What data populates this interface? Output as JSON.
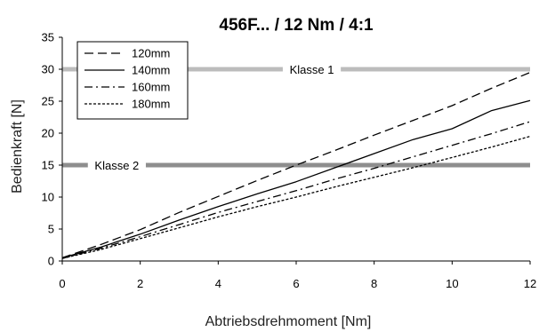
{
  "chart_data": {
    "type": "line",
    "title": "456F... / 12 Nm / 4:1",
    "xlabel": "Abtriebsdrehmoment [Nm]",
    "ylabel": "Bedienkraft [N]",
    "xlim": [
      0,
      12
    ],
    "ylim": [
      0,
      35
    ],
    "xticks": [
      0,
      2,
      4,
      6,
      8,
      10,
      12
    ],
    "yticks": [
      0,
      5,
      10,
      15,
      20,
      25,
      30,
      35
    ],
    "grid": false,
    "legend_position": "top-left",
    "x": [
      0,
      1,
      2,
      3,
      4,
      5,
      6,
      7,
      8,
      9,
      10,
      11,
      12
    ],
    "series": [
      {
        "name": "120mm",
        "dash": "dashed",
        "color": "#000000",
        "values": [
          0.5,
          2.6,
          4.9,
          7.6,
          10.1,
          12.6,
          15.0,
          17.3,
          19.7,
          22.0,
          24.3,
          27.0,
          29.5
        ]
      },
      {
        "name": "140mm",
        "dash": "solid",
        "color": "#000000",
        "values": [
          0.5,
          2.2,
          4.2,
          6.4,
          8.5,
          10.5,
          12.4,
          14.6,
          16.8,
          19.0,
          20.7,
          23.5,
          25.1
        ]
      },
      {
        "name": "160mm",
        "dash": "dashdot",
        "color": "#000000",
        "values": [
          0.4,
          2.0,
          3.8,
          5.7,
          7.6,
          9.3,
          11.0,
          12.8,
          14.5,
          16.3,
          18.1,
          19.9,
          21.8
        ]
      },
      {
        "name": "180mm",
        "dash": "dotted",
        "color": "#000000",
        "values": [
          0.4,
          1.8,
          3.5,
          5.2,
          6.9,
          8.5,
          10.0,
          11.6,
          13.1,
          14.6,
          16.2,
          17.8,
          19.5
        ]
      }
    ],
    "reference_lines": [
      {
        "label": "Klasse 1",
        "y": 30,
        "color": "#bcbcbc",
        "label_x": 6.4
      },
      {
        "label": "Klasse 2",
        "y": 15,
        "color": "#8e8e8e",
        "label_x": 1.4
      }
    ]
  }
}
